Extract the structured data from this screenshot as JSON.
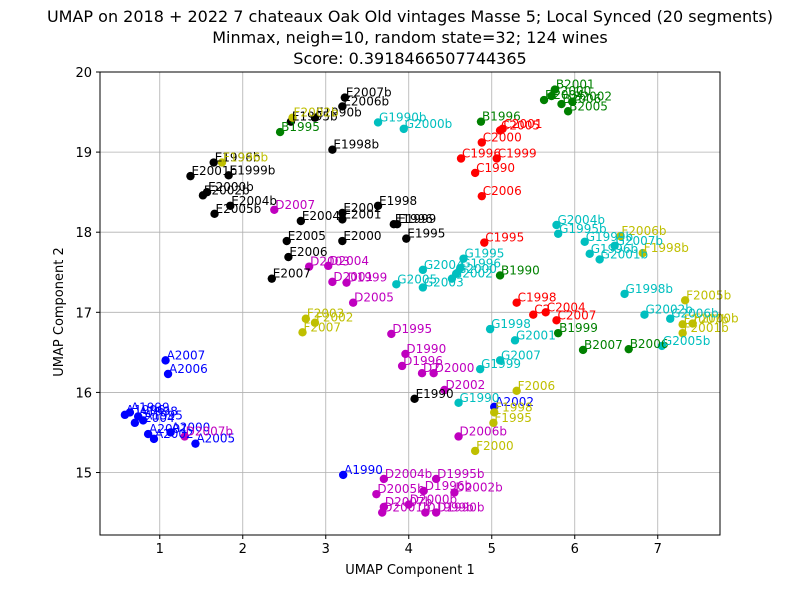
{
  "chart_data": {
    "type": "scatter",
    "title": [
      "UMAP on 2018 + 2022 7 chateaux Oak Old vintages Masse 5; Local Synced (20 segments)",
      "Minmax, neigh=10, random state=32; 124 wines",
      "Score: 0.3918466507744365"
    ],
    "xlabel": "UMAP Component 1",
    "ylabel": "UMAP Component 2",
    "xlim": [
      0.28,
      7.75
    ],
    "ylim": [
      14.22,
      20.0
    ],
    "xticks": [
      1,
      2,
      3,
      4,
      5,
      6,
      7
    ],
    "yticks": [
      15,
      16,
      17,
      18,
      19,
      20
    ],
    "grid": true,
    "colors": {
      "A": "#0000ff",
      "B": "#008000",
      "C": "#ff0000",
      "D": "#bf00bf",
      "E": "#000000",
      "F": "#bfbf00",
      "G": "#00bfbf"
    },
    "points": [
      {
        "x": 0.58,
        "y": 15.72,
        "label": "A1996",
        "g": "A"
      },
      {
        "x": 0.64,
        "y": 15.75,
        "label": "A1999",
        "g": "A"
      },
      {
        "x": 0.74,
        "y": 15.7,
        "label": "A1998",
        "g": "A"
      },
      {
        "x": 0.8,
        "y": 15.65,
        "label": "A1995",
        "g": "A"
      },
      {
        "x": 0.7,
        "y": 15.62,
        "label": "A2004",
        "g": "A"
      },
      {
        "x": 0.86,
        "y": 15.48,
        "label": "A2001",
        "g": "A"
      },
      {
        "x": 0.93,
        "y": 15.42,
        "label": "A2002",
        "g": "A"
      },
      {
        "x": 1.13,
        "y": 15.5,
        "label": "A2000",
        "g": "A"
      },
      {
        "x": 1.07,
        "y": 16.4,
        "label": "A2007",
        "g": "A"
      },
      {
        "x": 1.1,
        "y": 16.23,
        "label": "A2006",
        "g": "A"
      },
      {
        "x": 1.43,
        "y": 15.36,
        "label": "A2005",
        "g": "A"
      },
      {
        "x": 3.21,
        "y": 14.97,
        "label": "A1990",
        "g": "A"
      },
      {
        "x": 5.03,
        "y": 15.82,
        "label": "A2002",
        "g": "A"
      },
      {
        "x": 5.76,
        "y": 19.78,
        "label": "B2001",
        "g": "B"
      },
      {
        "x": 5.63,
        "y": 19.65,
        "label": "B2004",
        "g": "B"
      },
      {
        "x": 5.84,
        "y": 19.6,
        "label": "B2006",
        "g": "B"
      },
      {
        "x": 5.97,
        "y": 19.63,
        "label": "B2002",
        "g": "B"
      },
      {
        "x": 5.92,
        "y": 19.51,
        "label": "B2005",
        "g": "B"
      },
      {
        "x": 5.72,
        "y": 19.7,
        "label": "B2000",
        "g": "B"
      },
      {
        "x": 4.87,
        "y": 19.38,
        "label": "B1996",
        "g": "B"
      },
      {
        "x": 5.1,
        "y": 17.46,
        "label": "B1990",
        "g": "B"
      },
      {
        "x": 5.8,
        "y": 16.74,
        "label": "B1999",
        "g": "B"
      },
      {
        "x": 6.1,
        "y": 16.53,
        "label": "B2007",
        "g": "B"
      },
      {
        "x": 6.65,
        "y": 16.54,
        "label": "B2006",
        "g": "B"
      },
      {
        "x": 2.45,
        "y": 19.25,
        "label": "B1995",
        "g": "B"
      },
      {
        "x": 5.1,
        "y": 19.27,
        "label": "C2005",
        "g": "C"
      },
      {
        "x": 5.13,
        "y": 19.29,
        "label": "C2001",
        "g": "C"
      },
      {
        "x": 4.88,
        "y": 19.12,
        "label": "C2000",
        "g": "C"
      },
      {
        "x": 4.63,
        "y": 18.92,
        "label": "C1996",
        "g": "C"
      },
      {
        "x": 5.06,
        "y": 18.92,
        "label": "C1999",
        "g": "C"
      },
      {
        "x": 4.8,
        "y": 18.74,
        "label": "C1990",
        "g": "C"
      },
      {
        "x": 4.88,
        "y": 18.45,
        "label": "C2006",
        "g": "C"
      },
      {
        "x": 4.91,
        "y": 17.87,
        "label": "C1995",
        "g": "C"
      },
      {
        "x": 5.3,
        "y": 17.12,
        "label": "C1998",
        "g": "C"
      },
      {
        "x": 5.5,
        "y": 16.97,
        "label": "C2",
        "g": "C"
      },
      {
        "x": 5.65,
        "y": 17.0,
        "label": "C2004",
        "g": "C"
      },
      {
        "x": 5.78,
        "y": 16.9,
        "label": "C2007",
        "g": "C"
      },
      {
        "x": 2.38,
        "y": 18.28,
        "label": "D2007",
        "g": "D"
      },
      {
        "x": 2.8,
        "y": 17.57,
        "label": "D2003",
        "g": "D"
      },
      {
        "x": 3.03,
        "y": 17.58,
        "label": "D2004",
        "g": "D"
      },
      {
        "x": 3.08,
        "y": 17.38,
        "label": "D2001",
        "g": "D"
      },
      {
        "x": 3.25,
        "y": 17.37,
        "label": "D1999",
        "g": "D"
      },
      {
        "x": 3.33,
        "y": 17.12,
        "label": "D2005",
        "g": "D"
      },
      {
        "x": 3.79,
        "y": 16.73,
        "label": "D1995",
        "g": "D"
      },
      {
        "x": 3.96,
        "y": 16.48,
        "label": "D1990",
        "g": "D"
      },
      {
        "x": 3.92,
        "y": 16.33,
        "label": "D1996",
        "g": "D"
      },
      {
        "x": 4.16,
        "y": 16.24,
        "label": "D2",
        "g": "D"
      },
      {
        "x": 4.3,
        "y": 16.24,
        "label": "D2000",
        "g": "D"
      },
      {
        "x": 4.43,
        "y": 16.03,
        "label": "D2002",
        "g": "D"
      },
      {
        "x": 4.6,
        "y": 15.45,
        "label": "D2006b",
        "g": "D"
      },
      {
        "x": 3.7,
        "y": 14.92,
        "label": "D2004b",
        "g": "D"
      },
      {
        "x": 4.33,
        "y": 14.92,
        "label": "D1995b",
        "g": "D"
      },
      {
        "x": 3.61,
        "y": 14.73,
        "label": "D2005b",
        "g": "D"
      },
      {
        "x": 4.18,
        "y": 14.77,
        "label": "D1996b",
        "g": "D"
      },
      {
        "x": 4.55,
        "y": 14.75,
        "label": "D2002b",
        "g": "D"
      },
      {
        "x": 3.7,
        "y": 14.57,
        "label": "D2007b",
        "g": "D"
      },
      {
        "x": 3.68,
        "y": 14.5,
        "label": "D2001b",
        "g": "D"
      },
      {
        "x": 4.2,
        "y": 14.5,
        "label": "D1999b",
        "g": "D"
      },
      {
        "x": 4.33,
        "y": 14.5,
        "label": "D1990b",
        "g": "D"
      },
      {
        "x": 4.0,
        "y": 14.6,
        "label": "D2000b",
        "g": "D"
      },
      {
        "x": 1.3,
        "y": 15.45,
        "label": "D2007b",
        "g": "D"
      },
      {
        "x": 3.23,
        "y": 19.68,
        "label": "E2007b",
        "g": "E"
      },
      {
        "x": 3.2,
        "y": 19.57,
        "label": "E2006b",
        "g": "E"
      },
      {
        "x": 2.87,
        "y": 19.43,
        "label": "E1990b",
        "g": "E"
      },
      {
        "x": 2.58,
        "y": 19.38,
        "label": "E1995b",
        "g": "E"
      },
      {
        "x": 3.08,
        "y": 19.03,
        "label": "E1998b",
        "g": "E"
      },
      {
        "x": 1.65,
        "y": 18.87,
        "label": "E1996b",
        "g": "E"
      },
      {
        "x": 1.83,
        "y": 18.71,
        "label": "E1999b",
        "g": "E"
      },
      {
        "x": 1.37,
        "y": 18.7,
        "label": "E2001b",
        "g": "E"
      },
      {
        "x": 1.57,
        "y": 18.5,
        "label": "E2000b",
        "g": "E"
      },
      {
        "x": 1.52,
        "y": 18.46,
        "label": "E2002b",
        "g": "E"
      },
      {
        "x": 1.85,
        "y": 18.33,
        "label": "E2004b",
        "g": "E"
      },
      {
        "x": 1.66,
        "y": 18.23,
        "label": "E2005b",
        "g": "E"
      },
      {
        "x": 3.63,
        "y": 18.33,
        "label": "E1998",
        "g": "E"
      },
      {
        "x": 3.2,
        "y": 18.24,
        "label": "E2002",
        "g": "E"
      },
      {
        "x": 3.2,
        "y": 18.16,
        "label": "E2001",
        "g": "E"
      },
      {
        "x": 2.7,
        "y": 18.14,
        "label": "E2004",
        "g": "E"
      },
      {
        "x": 3.82,
        "y": 18.1,
        "label": "E1996",
        "g": "E"
      },
      {
        "x": 3.86,
        "y": 18.1,
        "label": "E1999",
        "g": "E"
      },
      {
        "x": 3.97,
        "y": 17.92,
        "label": "E1995",
        "g": "E"
      },
      {
        "x": 2.53,
        "y": 17.89,
        "label": "E2005",
        "g": "E"
      },
      {
        "x": 3.2,
        "y": 17.89,
        "label": "E2000",
        "g": "E"
      },
      {
        "x": 2.55,
        "y": 17.69,
        "label": "E2006",
        "g": "E"
      },
      {
        "x": 2.35,
        "y": 17.42,
        "label": "E2007",
        "g": "E"
      },
      {
        "x": 4.07,
        "y": 15.92,
        "label": "E1990",
        "g": "E"
      },
      {
        "x": 1.75,
        "y": 18.87,
        "label": "F1996b",
        "g": "F"
      },
      {
        "x": 2.6,
        "y": 19.43,
        "label": "F2002b",
        "g": "F"
      },
      {
        "x": 2.76,
        "y": 16.92,
        "label": "F2003",
        "g": "F"
      },
      {
        "x": 2.87,
        "y": 16.87,
        "label": "F2002",
        "g": "F"
      },
      {
        "x": 2.72,
        "y": 16.75,
        "label": "F2007",
        "g": "F"
      },
      {
        "x": 6.55,
        "y": 17.95,
        "label": "F2006b",
        "g": "F"
      },
      {
        "x": 6.82,
        "y": 17.74,
        "label": "F1998b",
        "g": "F"
      },
      {
        "x": 7.33,
        "y": 17.15,
        "label": "F2005b",
        "g": "F"
      },
      {
        "x": 7.3,
        "y": 16.85,
        "label": "F2007b",
        "g": "F"
      },
      {
        "x": 7.42,
        "y": 16.86,
        "label": "F2000b",
        "g": "F"
      },
      {
        "x": 7.3,
        "y": 16.74,
        "label": "F2001b",
        "g": "F"
      },
      {
        "x": 5.3,
        "y": 16.02,
        "label": "F2006",
        "g": "F"
      },
      {
        "x": 5.03,
        "y": 15.75,
        "label": "F1998",
        "g": "F"
      },
      {
        "x": 5.02,
        "y": 15.62,
        "label": "F1995",
        "g": "F"
      },
      {
        "x": 4.8,
        "y": 15.27,
        "label": "F2000",
        "g": "F"
      },
      {
        "x": 3.63,
        "y": 19.37,
        "label": "G1990b",
        "g": "G"
      },
      {
        "x": 3.94,
        "y": 19.29,
        "label": "G2000b",
        "g": "G"
      },
      {
        "x": 5.78,
        "y": 18.09,
        "label": "G2004b",
        "g": "G"
      },
      {
        "x": 5.8,
        "y": 17.98,
        "label": "G1995b",
        "g": "G"
      },
      {
        "x": 6.12,
        "y": 17.88,
        "label": "G1999b",
        "g": "G"
      },
      {
        "x": 6.48,
        "y": 17.83,
        "label": "G2007b",
        "g": "G"
      },
      {
        "x": 6.18,
        "y": 17.73,
        "label": "G1996b",
        "g": "G"
      },
      {
        "x": 6.3,
        "y": 17.66,
        "label": "G2001b",
        "g": "G"
      },
      {
        "x": 6.6,
        "y": 17.23,
        "label": "G1998b",
        "g": "G"
      },
      {
        "x": 6.84,
        "y": 16.97,
        "label": "G2002b",
        "g": "G"
      },
      {
        "x": 7.15,
        "y": 16.92,
        "label": "G2006b",
        "g": "G"
      },
      {
        "x": 7.05,
        "y": 16.58,
        "label": "G2005b",
        "g": "G"
      },
      {
        "x": 4.66,
        "y": 17.67,
        "label": "G1995",
        "g": "G"
      },
      {
        "x": 4.62,
        "y": 17.55,
        "label": "G1996",
        "g": "G"
      },
      {
        "x": 4.17,
        "y": 17.53,
        "label": "G2004",
        "g": "G"
      },
      {
        "x": 4.57,
        "y": 17.48,
        "label": "G2000",
        "g": "G"
      },
      {
        "x": 4.52,
        "y": 17.42,
        "label": "G2002",
        "g": "G"
      },
      {
        "x": 3.85,
        "y": 17.35,
        "label": "G2005",
        "g": "G"
      },
      {
        "x": 4.17,
        "y": 17.31,
        "label": "G2003",
        "g": "G"
      },
      {
        "x": 4.98,
        "y": 16.79,
        "label": "G1998",
        "g": "G"
      },
      {
        "x": 5.28,
        "y": 16.65,
        "label": "G2001",
        "g": "G"
      },
      {
        "x": 5.1,
        "y": 16.4,
        "label": "G2007",
        "g": "G"
      },
      {
        "x": 4.86,
        "y": 16.29,
        "label": "G1999",
        "g": "G"
      },
      {
        "x": 4.6,
        "y": 15.87,
        "label": "G1990",
        "g": "G"
      }
    ]
  }
}
